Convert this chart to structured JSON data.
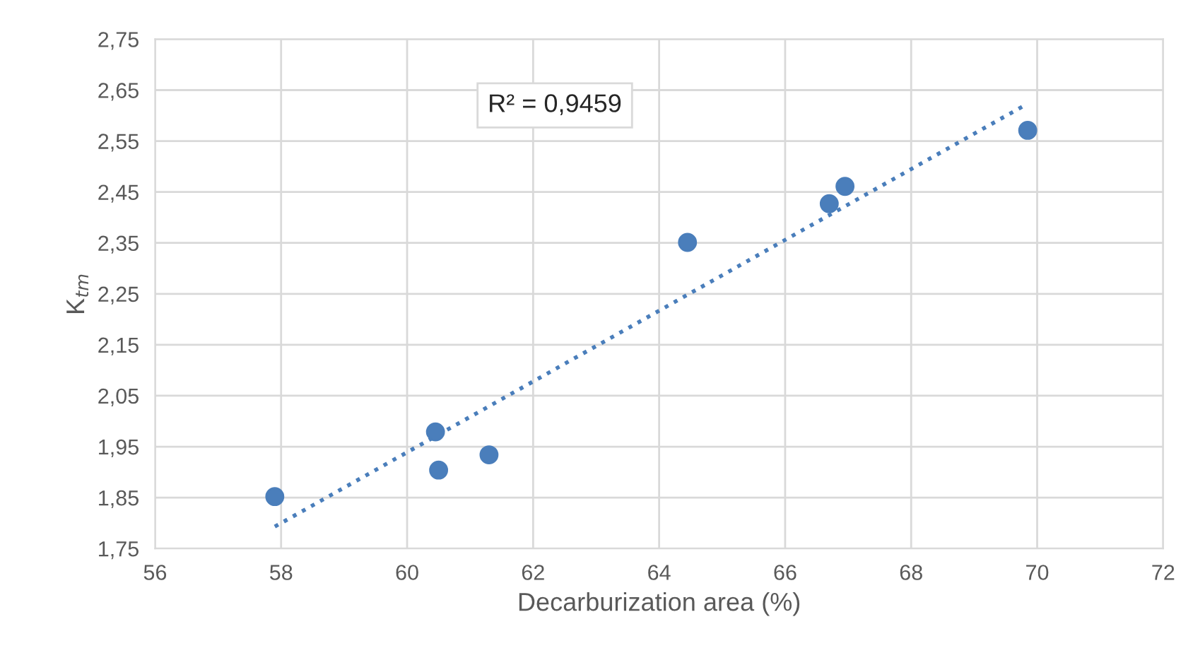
{
  "chart_data": {
    "type": "scatter",
    "xlabel": "Decarburization area (%)",
    "ylabel": "K$_{tm}$",
    "marker": "circle",
    "grid": true,
    "legend": false,
    "xlim": [
      56,
      72
    ],
    "xticks": [
      56,
      58,
      60,
      62,
      64,
      66,
      68,
      70,
      72
    ],
    "ylim": [
      1.75,
      2.75
    ],
    "yticks": [
      {
        "value": 1.75,
        "label": "1,75"
      },
      {
        "value": 1.85,
        "label": "1,85"
      },
      {
        "value": 1.95,
        "label": "1,95"
      },
      {
        "value": 2.05,
        "label": "2,05"
      },
      {
        "value": 2.15,
        "label": "2,15"
      },
      {
        "value": 2.25,
        "label": "2,25"
      },
      {
        "value": 2.35,
        "label": "2,35"
      },
      {
        "value": 2.45,
        "label": "2,45"
      },
      {
        "value": 2.55,
        "label": "2,55"
      },
      {
        "value": 2.65,
        "label": "2,65"
      },
      {
        "value": 2.75,
        "label": "2,75"
      }
    ],
    "series": [
      {
        "color": "#4a7ebb",
        "x": [
          57.9,
          60.45,
          60.5,
          61.3,
          64.45,
          66.7,
          66.95,
          69.85
        ],
        "values": [
          1.852,
          1.979,
          1.904,
          1.934,
          2.351,
          2.427,
          2.461,
          2.571
        ]
      },
      {
        "type": "line",
        "color": "#4a7ebb",
        "line_style": "dotted",
        "marker": "none",
        "x": [
          57.9,
          69.8
        ],
        "values": [
          1.793,
          2.62
        ]
      }
    ],
    "annotations": [
      "R² = 0,9459"
    ]
  }
}
